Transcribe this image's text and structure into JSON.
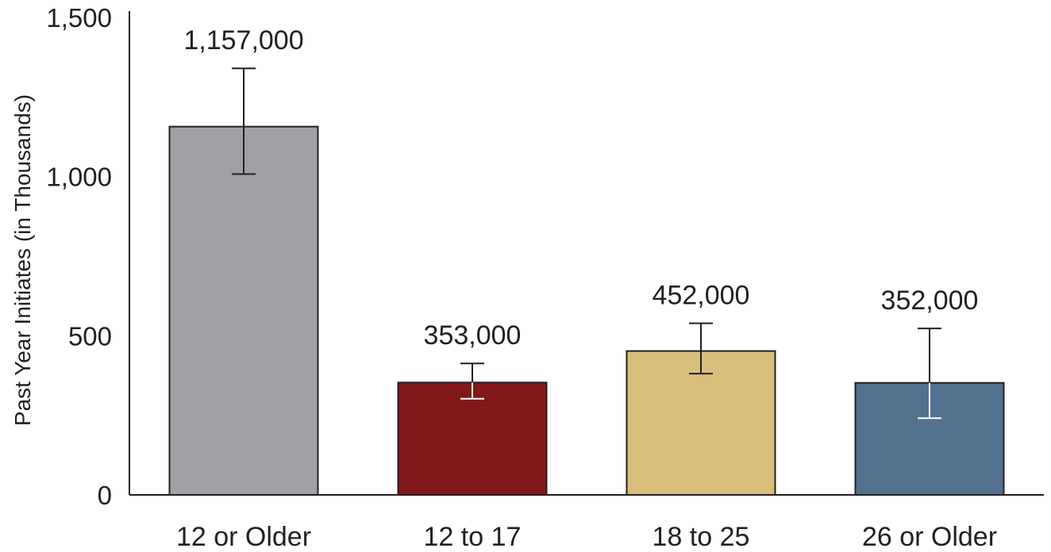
{
  "chart_data": {
    "type": "bar",
    "title": "",
    "xlabel": "",
    "ylabel": "Past Year Initiates (in Thousands)",
    "ylim": [
      0,
      1500
    ],
    "yticks": [
      0,
      500,
      1000,
      1500
    ],
    "ytick_labels": [
      "0",
      "500",
      "1,000",
      "1,500"
    ],
    "grid": false,
    "legend": "none",
    "categories": [
      "12 or Older",
      "12 to 17",
      "18 to 25",
      "26 or Older"
    ],
    "values": [
      1157,
      353,
      452,
      352
    ],
    "data_labels": [
      "1,157,000",
      "353,000",
      "452,000",
      "352,000"
    ],
    "error_low": [
      1008,
      302,
      381,
      241
    ],
    "error_high": [
      1340,
      413,
      539,
      523
    ],
    "colors": [
      "#a0a1a5",
      "#83181c",
      "#d8be7a",
      "#52718f"
    ],
    "error_colors_inside": [
      "#231f20",
      "#ffffff",
      "#231f20",
      "#ffffff"
    ]
  }
}
